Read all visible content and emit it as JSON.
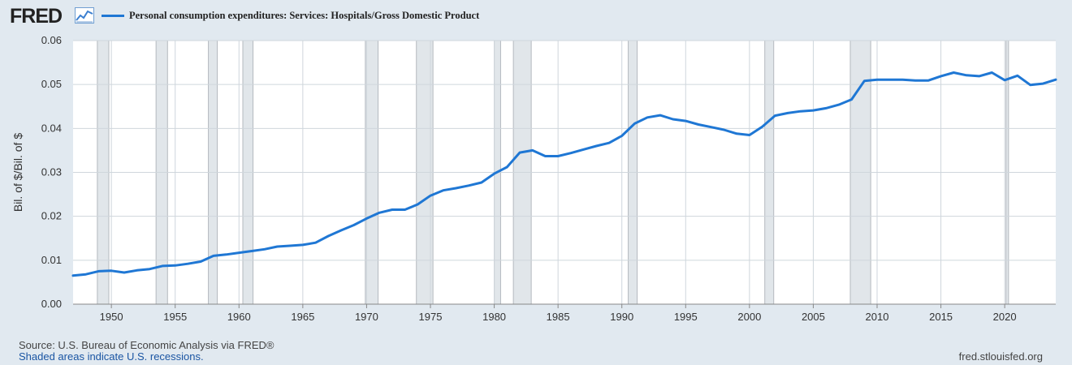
{
  "header": {
    "logo": "FRED",
    "logo_icon": "line-chart-icon"
  },
  "footer": {
    "source": "Source: U.S. Bureau of Economic Analysis via FRED®",
    "note": "Shaded areas indicate U.S. recessions.",
    "link": "fred.stlouisfed.org"
  },
  "colors": {
    "series": "#1f77d4",
    "recession": "#e1e6ea",
    "background": "#e1e9f0",
    "plot": "#ffffff"
  },
  "chart_data": {
    "type": "line",
    "title": "",
    "xlabel": "",
    "ylabel": "Bil. of $/Bil. of $",
    "xlim": [
      1947,
      2024
    ],
    "ylim": [
      0,
      0.06
    ],
    "y_ticks": [
      0,
      0.01,
      0.02,
      0.03,
      0.04,
      0.05,
      0.06
    ],
    "y_tick_labels": [
      "0.00",
      "0.01",
      "0.02",
      "0.03",
      "0.04",
      "0.05",
      "0.06"
    ],
    "x_ticks": [
      1950,
      1955,
      1960,
      1965,
      1970,
      1975,
      1980,
      1985,
      1990,
      1995,
      2000,
      2005,
      2010,
      2015,
      2020
    ],
    "x_tick_labels": [
      "1950",
      "1955",
      "1960",
      "1965",
      "1970",
      "1975",
      "1980",
      "1985",
      "1990",
      "1995",
      "2000",
      "2005",
      "2010",
      "2015",
      "2020"
    ],
    "grid": true,
    "legend_position": "top-left",
    "recessions": [
      [
        1948.9,
        1949.8
      ],
      [
        1953.5,
        1954.4
      ],
      [
        1957.6,
        1958.3
      ],
      [
        1960.3,
        1961.1
      ],
      [
        1969.9,
        1970.9
      ],
      [
        1973.9,
        1975.2
      ],
      [
        1980.0,
        1980.5
      ],
      [
        1981.5,
        1982.9
      ],
      [
        1990.5,
        1991.2
      ],
      [
        2001.2,
        2001.9
      ],
      [
        2007.9,
        2009.5
      ],
      [
        2020.1,
        2020.3
      ]
    ],
    "series": [
      {
        "name": "Personal consumption expenditures: Services: Hospitals/Gross Domestic Product",
        "x": [
          1947,
          1948,
          1949,
          1950,
          1951,
          1952,
          1953,
          1954,
          1955,
          1956,
          1957,
          1958,
          1959,
          1960,
          1961,
          1962,
          1963,
          1964,
          1965,
          1966,
          1967,
          1968,
          1969,
          1970,
          1971,
          1972,
          1973,
          1974,
          1975,
          1976,
          1977,
          1978,
          1979,
          1980,
          1981,
          1982,
          1983,
          1984,
          1985,
          1986,
          1987,
          1988,
          1989,
          1990,
          1991,
          1992,
          1993,
          1994,
          1995,
          1996,
          1997,
          1998,
          1999,
          2000,
          2001,
          2002,
          2003,
          2004,
          2005,
          2006,
          2007,
          2008,
          2009,
          2010,
          2011,
          2012,
          2013,
          2014,
          2015,
          2016,
          2017,
          2018,
          2019,
          2020,
          2021,
          2022,
          2023,
          2024
        ],
        "values": [
          0.0065,
          0.0068,
          0.0075,
          0.0076,
          0.0072,
          0.0077,
          0.008,
          0.0087,
          0.0088,
          0.0092,
          0.0097,
          0.011,
          0.0113,
          0.0117,
          0.0121,
          0.0125,
          0.0131,
          0.0133,
          0.0135,
          0.014,
          0.0155,
          0.0168,
          0.018,
          0.0195,
          0.0208,
          0.0215,
          0.0215,
          0.0227,
          0.0247,
          0.0259,
          0.0264,
          0.027,
          0.0277,
          0.0297,
          0.0312,
          0.0345,
          0.035,
          0.0337,
          0.0337,
          0.0344,
          0.0352,
          0.036,
          0.0367,
          0.0383,
          0.0411,
          0.0425,
          0.043,
          0.0421,
          0.0417,
          0.0409,
          0.0403,
          0.0397,
          0.0388,
          0.0385,
          0.0404,
          0.0429,
          0.0435,
          0.0439,
          0.0441,
          0.0446,
          0.0454,
          0.0466,
          0.0508,
          0.0511,
          0.0511,
          0.0511,
          0.0509,
          0.0509,
          0.0519,
          0.0527,
          0.0521,
          0.0519,
          0.0527,
          0.051,
          0.052,
          0.0499,
          0.0502,
          0.0511
        ]
      }
    ]
  }
}
